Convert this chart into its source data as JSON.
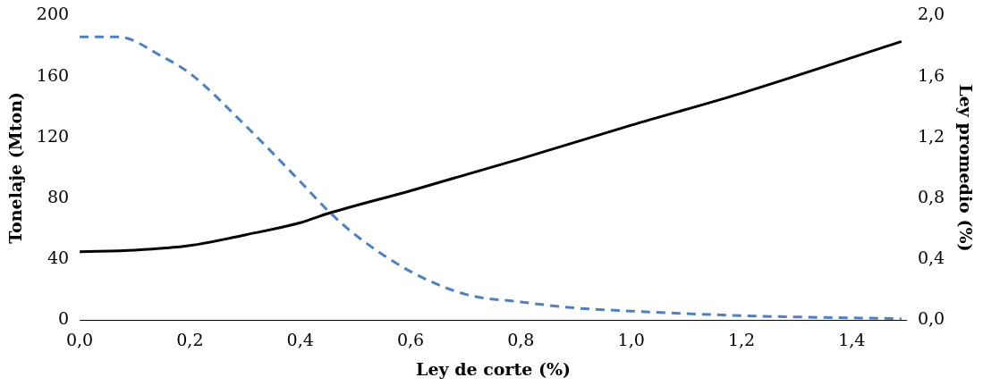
{
  "chart_data": {
    "type": "line",
    "xlabel": "Ley de corte (%)",
    "ylabel": "Tonelaje (Mton)",
    "y2label": "Ley promedio (%)",
    "xlim": [
      0,
      1.5
    ],
    "xticks": [
      {
        "value": 0,
        "label": "0,0"
      },
      {
        "value": 0.2,
        "label": "0,2"
      },
      {
        "value": 0.4,
        "label": "0,4"
      },
      {
        "value": 0.6,
        "label": "0,6"
      },
      {
        "value": 0.8,
        "label": "0,8"
      },
      {
        "value": 1.0,
        "label": "1,0"
      },
      {
        "value": 1.2,
        "label": "1,2"
      },
      {
        "value": 1.4,
        "label": "1,4"
      }
    ],
    "ylim": [
      0,
      200
    ],
    "yticks": [
      0,
      40,
      80,
      120,
      160,
      200
    ],
    "y2lim": [
      0,
      2
    ],
    "y2ticks": [
      {
        "value": 0,
        "label": "0,0"
      },
      {
        "value": 0.4,
        "label": "0,4"
      },
      {
        "value": 0.8,
        "label": "0,8"
      },
      {
        "value": 1.2,
        "label": "1,2"
      },
      {
        "value": 1.6,
        "label": "1,6"
      },
      {
        "value": 2.0,
        "label": "2,0"
      }
    ],
    "grid": false,
    "legend": false,
    "marker": "none",
    "series": [
      {
        "color": "#4f81bd",
        "line_style": "dashed",
        "x": [
          0,
          0.07,
          0.15,
          0.2,
          0.3,
          0.4,
          0.45,
          0.5,
          0.6,
          0.7,
          0.8,
          0.9,
          1.0,
          1.2,
          1.49
        ],
        "values": [
          186,
          186,
          173,
          162,
          128,
          91,
          72,
          56,
          32,
          17,
          12,
          8,
          6,
          3,
          1
        ]
      },
      {
        "color": "#000000",
        "line_style": "solid",
        "axis": "y2",
        "x": [
          0,
          0.1,
          0.2,
          0.3,
          0.4,
          0.45,
          0.6,
          0.8,
          1.0,
          1.2,
          1.49
        ],
        "values": [
          0.45,
          0.46,
          0.49,
          0.56,
          0.64,
          0.7,
          0.85,
          1.06,
          1.28,
          1.49,
          1.83
        ]
      }
    ]
  }
}
